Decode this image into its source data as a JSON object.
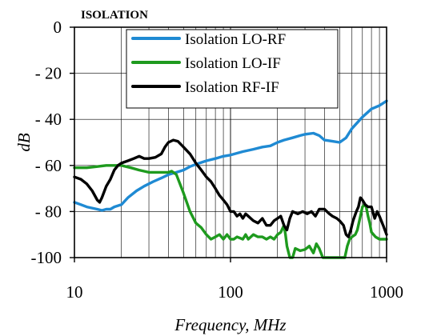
{
  "chart_data": {
    "type": "line",
    "title": "ISOLATION",
    "xlabel": "Frequency, MHz",
    "ylabel": "dB",
    "xscale": "log",
    "xlim": [
      10,
      1000
    ],
    "ylim": [
      -100,
      0
    ],
    "xticks": [
      10,
      100,
      1000
    ],
    "xtick_labels": [
      "10",
      "100",
      "1000"
    ],
    "yticks": [
      0,
      -20,
      -40,
      -60,
      -80,
      -100
    ],
    "ytick_labels": [
      "0",
      "- 20",
      "- 40",
      "- 60",
      "- 80",
      "-100"
    ],
    "grid": true,
    "legend_position": "top-right",
    "series": [
      {
        "name": "Isolation LO-RF",
        "color": "#1f8ad3",
        "points": [
          [
            10,
            -76
          ],
          [
            11,
            -77
          ],
          [
            12,
            -78
          ],
          [
            13,
            -78.5
          ],
          [
            14,
            -79
          ],
          [
            15,
            -79.5
          ],
          [
            16,
            -79
          ],
          [
            17,
            -79
          ],
          [
            18,
            -78
          ],
          [
            20,
            -77
          ],
          [
            22,
            -74
          ],
          [
            25,
            -71
          ],
          [
            28,
            -69
          ],
          [
            32,
            -67
          ],
          [
            36,
            -65.5
          ],
          [
            40,
            -64
          ],
          [
            45,
            -63
          ],
          [
            50,
            -62
          ],
          [
            55,
            -60.5
          ],
          [
            60,
            -59.5
          ],
          [
            70,
            -58
          ],
          [
            80,
            -57
          ],
          [
            90,
            -56
          ],
          [
            100,
            -55.5
          ],
          [
            120,
            -54
          ],
          [
            140,
            -53
          ],
          [
            160,
            -52
          ],
          [
            180,
            -51.5
          ],
          [
            200,
            -50
          ],
          [
            220,
            -49
          ],
          [
            250,
            -48
          ],
          [
            280,
            -47
          ],
          [
            300,
            -46.5
          ],
          [
            340,
            -46
          ],
          [
            370,
            -47
          ],
          [
            400,
            -49
          ],
          [
            450,
            -49.5
          ],
          [
            500,
            -50
          ],
          [
            550,
            -48
          ],
          [
            600,
            -44
          ],
          [
            700,
            -39
          ],
          [
            800,
            -35.5
          ],
          [
            900,
            -34
          ],
          [
            1000,
            -32
          ]
        ]
      },
      {
        "name": "Isolation LO-IF",
        "color": "#1e9a1e",
        "points": [
          [
            10,
            -61
          ],
          [
            12,
            -61
          ],
          [
            14,
            -60.5
          ],
          [
            16,
            -60
          ],
          [
            18,
            -60
          ],
          [
            20,
            -60
          ],
          [
            23,
            -61
          ],
          [
            26,
            -62
          ],
          [
            30,
            -63
          ],
          [
            35,
            -63
          ],
          [
            40,
            -63
          ],
          [
            42,
            -62.5
          ],
          [
            45,
            -64
          ],
          [
            50,
            -72
          ],
          [
            55,
            -80
          ],
          [
            60,
            -85
          ],
          [
            65,
            -87
          ],
          [
            70,
            -90
          ],
          [
            75,
            -92
          ],
          [
            80,
            -91
          ],
          [
            85,
            -90
          ],
          [
            90,
            -92
          ],
          [
            95,
            -90
          ],
          [
            100,
            -92
          ],
          [
            105,
            -92
          ],
          [
            110,
            -91
          ],
          [
            120,
            -92
          ],
          [
            125,
            -90
          ],
          [
            130,
            -92
          ],
          [
            140,
            -90
          ],
          [
            150,
            -91
          ],
          [
            160,
            -91
          ],
          [
            170,
            -92
          ],
          [
            180,
            -91
          ],
          [
            190,
            -92
          ],
          [
            200,
            -90
          ],
          [
            210,
            -89
          ],
          [
            220,
            -86
          ],
          [
            225,
            -90
          ],
          [
            230,
            -95
          ],
          [
            240,
            -100
          ],
          [
            250,
            -100
          ],
          [
            260,
            -96
          ],
          [
            280,
            -97
          ],
          [
            300,
            -96.5
          ],
          [
            320,
            -95
          ],
          [
            340,
            -98
          ],
          [
            355,
            -94
          ],
          [
            370,
            -96
          ],
          [
            390,
            -100
          ],
          [
            400,
            -100
          ],
          [
            420,
            -100
          ],
          [
            440,
            -100
          ],
          [
            460,
            -100
          ],
          [
            480,
            -100
          ],
          [
            500,
            -100
          ],
          [
            520,
            -100
          ],
          [
            540,
            -100
          ],
          [
            560,
            -95
          ],
          [
            580,
            -92
          ],
          [
            600,
            -91
          ],
          [
            630,
            -90
          ],
          [
            650,
            -88
          ],
          [
            680,
            -82
          ],
          [
            700,
            -78
          ],
          [
            720,
            -77
          ],
          [
            740,
            -78
          ],
          [
            760,
            -82
          ],
          [
            780,
            -85
          ],
          [
            800,
            -89
          ],
          [
            850,
            -91
          ],
          [
            900,
            -92
          ],
          [
            950,
            -92
          ],
          [
            1000,
            -92
          ]
        ]
      },
      {
        "name": "Isolation RF-IF",
        "color": "#000000",
        "points": [
          [
            10,
            -65
          ],
          [
            11,
            -66
          ],
          [
            12,
            -68
          ],
          [
            13,
            -71
          ],
          [
            14,
            -75
          ],
          [
            14.5,
            -76
          ],
          [
            15,
            -74
          ],
          [
            16,
            -69
          ],
          [
            17,
            -66
          ],
          [
            18,
            -62
          ],
          [
            19,
            -60
          ],
          [
            20,
            -59
          ],
          [
            22,
            -58
          ],
          [
            24,
            -57
          ],
          [
            26,
            -56
          ],
          [
            28,
            -57
          ],
          [
            30,
            -57
          ],
          [
            33,
            -56.5
          ],
          [
            36,
            -55
          ],
          [
            38,
            -52
          ],
          [
            40,
            -50
          ],
          [
            43,
            -49
          ],
          [
            46,
            -49.5
          ],
          [
            50,
            -52
          ],
          [
            55,
            -55
          ],
          [
            60,
            -59
          ],
          [
            65,
            -62
          ],
          [
            70,
            -65
          ],
          [
            75,
            -67
          ],
          [
            80,
            -70
          ],
          [
            85,
            -73
          ],
          [
            90,
            -75
          ],
          [
            95,
            -77
          ],
          [
            100,
            -80
          ],
          [
            105,
            -80
          ],
          [
            110,
            -82
          ],
          [
            115,
            -81
          ],
          [
            120,
            -83
          ],
          [
            125,
            -81
          ],
          [
            130,
            -82
          ],
          [
            140,
            -84
          ],
          [
            150,
            -85
          ],
          [
            160,
            -83
          ],
          [
            170,
            -86
          ],
          [
            180,
            -86
          ],
          [
            190,
            -84
          ],
          [
            200,
            -83
          ],
          [
            210,
            -82
          ],
          [
            220,
            -86
          ],
          [
            230,
            -88
          ],
          [
            240,
            -83
          ],
          [
            250,
            -80
          ],
          [
            270,
            -81
          ],
          [
            290,
            -80
          ],
          [
            310,
            -81
          ],
          [
            330,
            -80
          ],
          [
            350,
            -82
          ],
          [
            370,
            -79
          ],
          [
            400,
            -79
          ],
          [
            430,
            -81
          ],
          [
            450,
            -82
          ],
          [
            480,
            -83
          ],
          [
            500,
            -84
          ],
          [
            530,
            -86
          ],
          [
            550,
            -90
          ],
          [
            570,
            -91
          ],
          [
            590,
            -88
          ],
          [
            610,
            -84
          ],
          [
            640,
            -80
          ],
          [
            660,
            -78
          ],
          [
            680,
            -74
          ],
          [
            700,
            -75
          ],
          [
            730,
            -77
          ],
          [
            760,
            -78
          ],
          [
            800,
            -78
          ],
          [
            840,
            -83
          ],
          [
            870,
            -80
          ],
          [
            900,
            -82
          ],
          [
            950,
            -86
          ],
          [
            1000,
            -90
          ]
        ]
      }
    ]
  }
}
